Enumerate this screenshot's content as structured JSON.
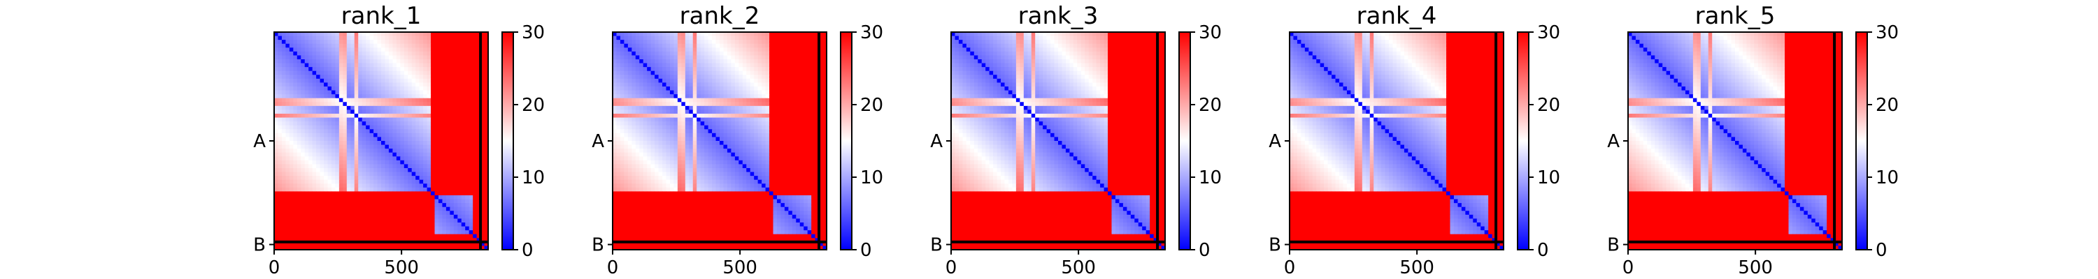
{
  "chart_data": {
    "type": "heatmap",
    "colormap": {
      "name": "bwr",
      "stops": [
        "#0000ff",
        "#ffffff",
        "#ff0000"
      ]
    },
    "panels": [
      {
        "title": "rank_1"
      },
      {
        "title": "rank_2"
      },
      {
        "title": "rank_3"
      },
      {
        "title": "rank_4"
      },
      {
        "title": "rank_5"
      }
    ],
    "x_ticks": [
      {
        "value": 0,
        "label": "0"
      },
      {
        "value": 500,
        "label": "500"
      }
    ],
    "y_ticks": [
      {
        "value": 420,
        "label": "A"
      },
      {
        "value": 820,
        "label": "B"
      }
    ],
    "residue_range": [
      0,
      840
    ],
    "chain_boundaries": [
      810
    ],
    "colorbar": {
      "range": [
        0,
        30
      ],
      "ticks": [
        {
          "value": 0,
          "label": "0"
        },
        {
          "value": 10,
          "label": "10"
        },
        {
          "value": 20,
          "label": "20"
        },
        {
          "value": 30,
          "label": "30"
        }
      ]
    },
    "structure": {
      "domains": [
        [
          0,
          610
        ],
        [
          630,
          780
        ]
      ],
      "bands": [
        [
          250,
          285
        ],
        [
          315,
          330
        ]
      ],
      "low_value": 6,
      "high_value": 30
    }
  }
}
